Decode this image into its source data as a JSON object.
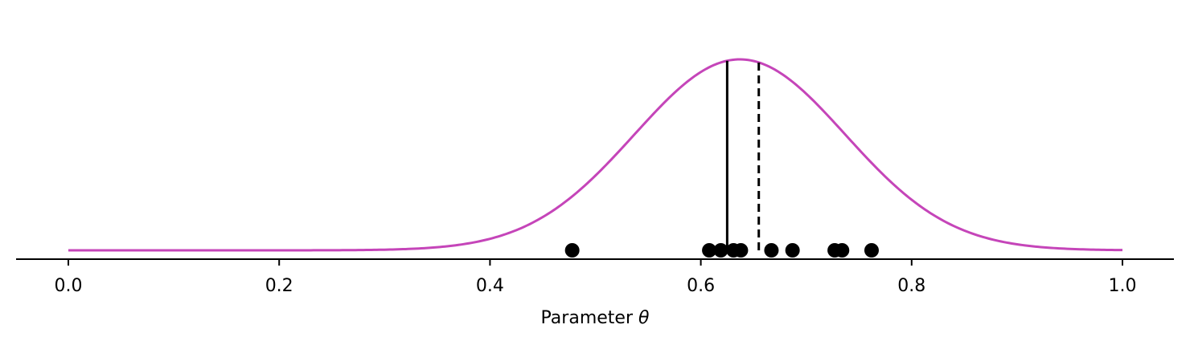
{
  "chart_data": {
    "type": "line",
    "title": "",
    "xlabel": "Parameter θ",
    "xlabel_prefix": "Parameter ",
    "xlabel_symbol": "θ",
    "ylabel": "",
    "xlim": [
      -0.05,
      1.05
    ],
    "ylim": [
      0,
      1.0
    ],
    "xticks": [
      "0.0",
      "0.2",
      "0.4",
      "0.6",
      "0.8",
      "1.0"
    ],
    "xtick_values": [
      0.0,
      0.2,
      0.4,
      0.6,
      0.8,
      1.0
    ],
    "grid": false,
    "legend": null,
    "series": [
      {
        "type": "line",
        "color": "#c545b9",
        "style": "solid",
        "distribution": "normal",
        "mean": 0.637,
        "sd": 0.1,
        "x_range": [
          0.0,
          1.0
        ]
      }
    ],
    "samples": {
      "type": "scatter",
      "color": "#000000",
      "x": [
        0.478,
        0.608,
        0.619,
        0.631,
        0.638,
        0.667,
        0.687,
        0.727,
        0.734,
        0.762
      ]
    },
    "vertical_lines": [
      {
        "x": 0.625,
        "style": "solid",
        "color": "#000000"
      },
      {
        "x": 0.655,
        "style": "dashed",
        "color": "#000000"
      }
    ]
  }
}
